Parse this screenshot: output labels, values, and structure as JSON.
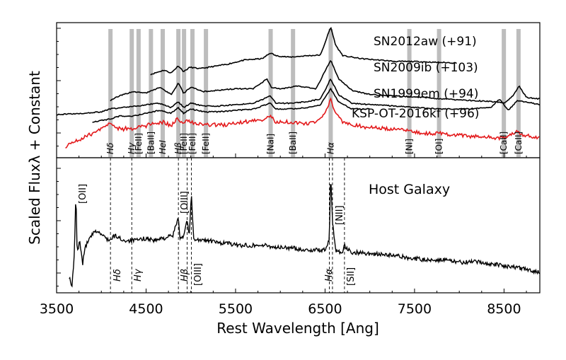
{
  "chart_data": [
    {
      "type": "line",
      "panel": "top",
      "xlabel": "Rest Wavelength [Ang]",
      "ylabel": "Scaled Fluxλ + Constant",
      "xlim": [
        3500,
        8900
      ],
      "x_ticks": [
        3500,
        4500,
        5500,
        6500,
        7500,
        8500
      ],
      "series": [
        {
          "name": "SN2012aw (+91)",
          "color": "#000000",
          "x": [
            4550,
            4600,
            4700,
            4780,
            4860,
            4920,
            4990,
            5100,
            5200,
            5400,
            5600,
            5800,
            5890,
            5950,
            6100,
            6300,
            6450,
            6563,
            6620,
            6700,
            6900,
            7100,
            7300,
            7500,
            7700,
            7970
          ],
          "y": [
            0.78,
            0.8,
            0.84,
            0.8,
            0.9,
            0.82,
            0.88,
            0.86,
            0.88,
            0.92,
            0.98,
            1.0,
            1.08,
            1.04,
            1.02,
            1.04,
            1.05,
            1.44,
            1.18,
            1.04,
            1.0,
            0.98,
            0.96,
            0.96,
            0.95,
            0.94
          ]
        },
        {
          "name": "SN2009ib (+103)",
          "color": "#000000",
          "x": [
            4100,
            4200,
            4350,
            4500,
            4650,
            4780,
            4860,
            4920,
            5000,
            5150,
            5300,
            5500,
            5700,
            5850,
            5900,
            6000,
            6200,
            6400,
            6563,
            6650,
            6800,
            7000,
            7300,
            7600,
            7800,
            8100,
            8400,
            8500,
            8600,
            8670,
            8750,
            8900
          ],
          "y": [
            0.42,
            0.48,
            0.54,
            0.52,
            0.6,
            0.5,
            0.66,
            0.52,
            0.6,
            0.54,
            0.56,
            0.58,
            0.58,
            0.72,
            0.6,
            0.58,
            0.62,
            0.58,
            0.98,
            0.72,
            0.56,
            0.5,
            0.48,
            0.46,
            0.44,
            0.42,
            0.4,
            0.38,
            0.48,
            0.62,
            0.46,
            0.44
          ]
        },
        {
          "name": "SN1999em (+94)",
          "color": "#000000",
          "x": [
            3500,
            3800,
            4000,
            4100,
            4250,
            4400,
            4500,
            4650,
            4780,
            4860,
            4920,
            5000,
            5150,
            5300,
            5500,
            5700,
            5890,
            5950,
            6100,
            6300,
            6450,
            6563,
            6650,
            6800,
            7000,
            7300,
            7500,
            7800,
            8100,
            8350,
            8450,
            8550,
            8650,
            8900
          ],
          "y": [
            0.22,
            0.24,
            0.26,
            0.3,
            0.32,
            0.34,
            0.36,
            0.38,
            0.32,
            0.4,
            0.32,
            0.38,
            0.34,
            0.34,
            0.36,
            0.38,
            0.48,
            0.38,
            0.38,
            0.4,
            0.44,
            0.72,
            0.5,
            0.38,
            0.36,
            0.34,
            0.32,
            0.3,
            0.3,
            0.32,
            0.44,
            0.28,
            0.42,
            0.36
          ]
        },
        {
          "name": "KSP-OT-2016kf (+96)",
          "color": "#000000",
          "x": [
            3900,
            4000,
            4100,
            4200,
            4350,
            4500,
            4650,
            4780,
            4860,
            4920,
            5000,
            5150,
            5300,
            5500,
            5700,
            5890,
            5950,
            6100,
            6300,
            6450,
            6563,
            6650,
            6800,
            7000
          ],
          "y": [
            0.12,
            0.14,
            0.16,
            0.2,
            0.2,
            0.24,
            0.28,
            0.24,
            0.32,
            0.24,
            0.3,
            0.26,
            0.26,
            0.28,
            0.3,
            0.38,
            0.3,
            0.3,
            0.32,
            0.36,
            0.58,
            0.4,
            0.3,
            0.3
          ]
        },
        {
          "name": "",
          "color": "#e31a1c",
          "x": [
            3600,
            3700,
            3800,
            3900,
            3950,
            4000,
            4050,
            4100,
            4150,
            4250,
            4300,
            4350,
            4400,
            4500,
            4550,
            4600,
            4700,
            4780,
            4830,
            4860,
            4900,
            4950,
            5000,
            5050,
            5100,
            5200,
            5300,
            5400,
            5500,
            5600,
            5700,
            5800,
            5850,
            5890,
            5950,
            6000,
            6100,
            6200,
            6300,
            6400,
            6450,
            6500,
            6563,
            6620,
            6700,
            6800,
            6900,
            7000,
            7100,
            7200,
            7300,
            7400,
            7500,
            7600,
            7700,
            7800,
            7900,
            8000,
            8100,
            8200,
            8300,
            8400,
            8500,
            8550,
            8600,
            8650,
            8700,
            8800,
            8900
          ],
          "y": [
            -0.22,
            -0.16,
            -0.1,
            -0.04,
            0.0,
            0.02,
            0.06,
            0.12,
            0.04,
            0.02,
            0.04,
            0.02,
            0.04,
            0.06,
            0.1,
            0.08,
            0.12,
            0.06,
            0.14,
            0.16,
            0.1,
            0.14,
            0.12,
            0.1,
            0.1,
            0.08,
            0.08,
            0.08,
            0.1,
            0.12,
            0.14,
            0.14,
            0.18,
            0.2,
            0.12,
            0.12,
            0.12,
            0.1,
            0.1,
            0.12,
            0.18,
            0.26,
            0.42,
            0.26,
            0.12,
            0.08,
            0.06,
            0.04,
            0.04,
            0.02,
            0.02,
            0.0,
            -0.02,
            -0.04,
            -0.04,
            -0.04,
            -0.06,
            -0.06,
            -0.08,
            -0.08,
            -0.08,
            -0.1,
            -0.1,
            -0.06,
            -0.04,
            -0.02,
            -0.06,
            -0.08,
            -0.1
          ]
        }
      ],
      "annotations": [
        {
          "text": "SN2012aw (+91)"
        },
        {
          "text": "SN2009ib (+103)"
        },
        {
          "text": "SN1999em (+94)"
        },
        {
          "text": "KSP-OT-2016kf (+96)"
        }
      ],
      "line_markers": [
        {
          "label": "Hδ",
          "x": 4102
        },
        {
          "label": "Hγ",
          "x": 4340
        },
        {
          "label": "[FeII]",
          "x": 4416
        },
        {
          "label": "[BaII]",
          "x": 4554
        },
        {
          "label": "HeI",
          "x": 4686
        },
        {
          "label": "Hβ",
          "x": 4861
        },
        {
          "label": "[FeII]",
          "x": 4924
        },
        {
          "label": "[FeII]",
          "x": 5018
        },
        {
          "label": "[FeII]",
          "x": 5169
        },
        {
          "label": "[NaI]",
          "x": 5892
        },
        {
          "label": "[BaII]",
          "x": 6142
        },
        {
          "label": "Hα",
          "x": 6563
        },
        {
          "label": "[NI]",
          "x": 7442
        },
        {
          "label": "[OI]",
          "x": 7774
        },
        {
          "label": "[CaII]",
          "x": 8498
        },
        {
          "label": "[CaII]",
          "x": 8662
        }
      ]
    },
    {
      "type": "line",
      "panel": "bottom",
      "title": "Host Galaxy",
      "xlim": [
        3500,
        8900
      ],
      "series": [
        {
          "name": "Host Galaxy",
          "color": "#000000",
          "x": [
            3640,
            3670,
            3700,
            3715,
            3730,
            3760,
            3790,
            3820,
            3860,
            3900,
            3950,
            4000,
            4050,
            4100,
            4150,
            4200,
            4250,
            4300,
            4400,
            4500,
            4600,
            4700,
            4800,
            4861,
            4880,
            4920,
            4959,
            4980,
            5007,
            5030,
            5100,
            5200,
            5300,
            5400,
            5500,
            5600,
            5700,
            5800,
            5900,
            6000,
            6100,
            6200,
            6300,
            6400,
            6500,
            6548,
            6563,
            6583,
            6620,
            6700,
            6717,
            6731,
            6800,
            6900,
            7000,
            7200,
            7400,
            7600,
            7800,
            8000,
            8200,
            8400,
            8600,
            8800,
            8900
          ],
          "y": [
            0.1,
            0.0,
            0.3,
            0.82,
            0.3,
            0.4,
            0.2,
            0.35,
            0.4,
            0.45,
            0.48,
            0.45,
            0.42,
            0.4,
            0.44,
            0.42,
            0.4,
            0.4,
            0.4,
            0.42,
            0.4,
            0.42,
            0.44,
            0.6,
            0.42,
            0.44,
            0.58,
            0.42,
            0.78,
            0.42,
            0.4,
            0.4,
            0.38,
            0.38,
            0.36,
            0.36,
            0.36,
            0.36,
            0.35,
            0.34,
            0.34,
            0.33,
            0.32,
            0.32,
            0.32,
            0.4,
            0.98,
            0.55,
            0.32,
            0.3,
            0.38,
            0.34,
            0.3,
            0.3,
            0.29,
            0.28,
            0.26,
            0.24,
            0.24,
            0.22,
            0.22,
            0.2,
            0.18,
            0.15,
            0.14
          ]
        }
      ],
      "labels": [
        {
          "text": "[OII]"
        },
        {
          "text": "[OIII]"
        },
        {
          "text": "[NII]"
        },
        {
          "text": "Hδ"
        },
        {
          "text": "Hγ"
        },
        {
          "text": "Hβ"
        },
        {
          "text": "[OIII]"
        },
        {
          "text": "Hα"
        },
        {
          "text": "[SII]"
        }
      ],
      "line_markers": [
        {
          "label": "Hδ",
          "x": 4102
        },
        {
          "label": "Hγ",
          "x": 4340
        },
        {
          "label": "Hβ",
          "x": 4861
        },
        {
          "label": "[OIII]",
          "x": 4959
        },
        {
          "label": "[OIII]",
          "x": 5007
        },
        {
          "label": "Hα",
          "x": 6548
        },
        {
          "label": "[NII]",
          "x": 6583
        },
        {
          "label": "[SII]",
          "x": 6717
        }
      ]
    }
  ]
}
